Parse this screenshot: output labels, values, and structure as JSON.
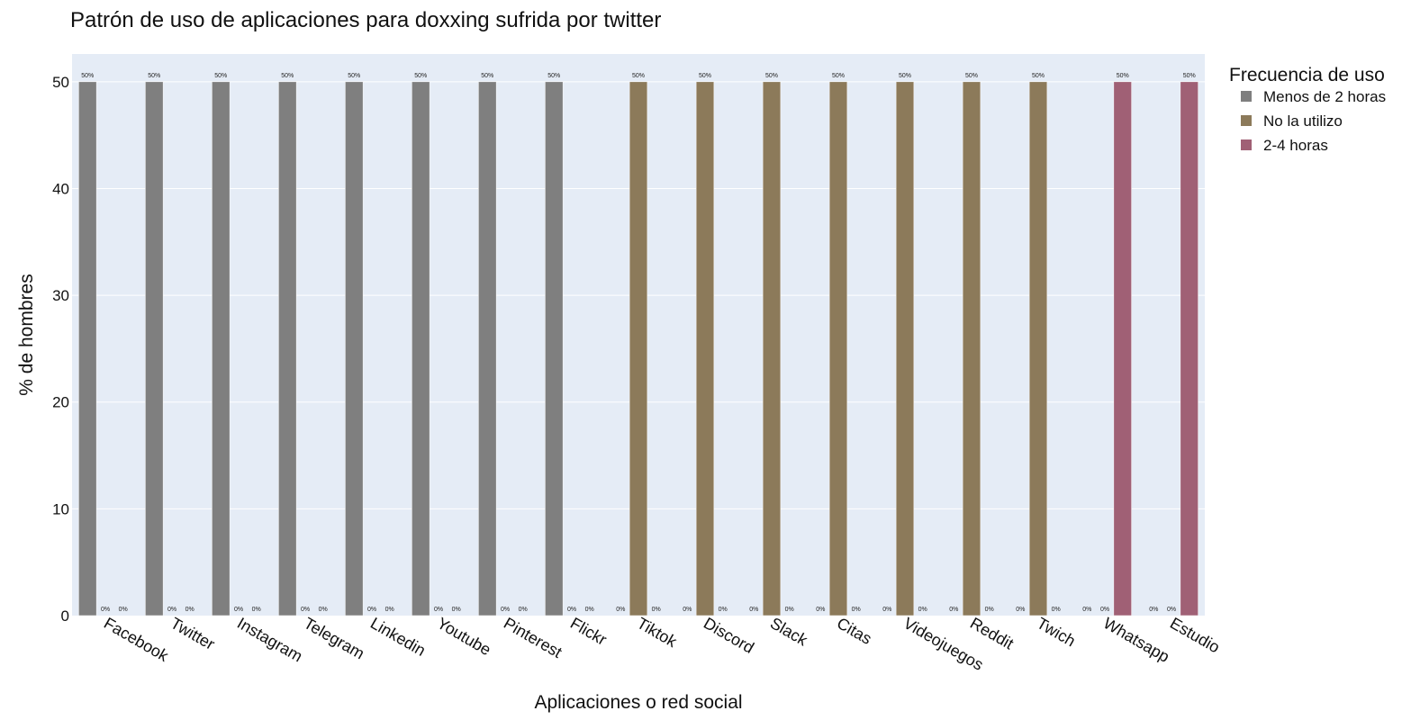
{
  "chart_data": {
    "type": "bar",
    "title": "Patrón de uso de aplicaciones para doxxing sufrida por twitter",
    "xlabel": "Aplicaciones o red social",
    "ylabel": "% de hombres",
    "ylim": [
      0,
      52.6
    ],
    "yticks": [
      0,
      10,
      20,
      30,
      40,
      50
    ],
    "grid": true,
    "legend": {
      "title": "Frecuencia de uso",
      "placement": "top-right"
    },
    "categories": [
      "Facebook",
      "Twitter",
      "Instagram",
      "Telegram",
      "Linkedin",
      "Youtube",
      "Pinterest",
      "Flickr",
      "Tiktok",
      "Discord",
      "Slack",
      "Citas",
      "Videojuegos",
      "Reddit",
      "Twich",
      "Whatsapp",
      "Estudio"
    ],
    "series": [
      {
        "name": "Menos de 2 horas",
        "color": "#7f7f7f",
        "values": [
          50,
          50,
          50,
          50,
          50,
          50,
          50,
          50,
          0,
          0,
          0,
          0,
          0,
          0,
          0,
          0,
          0
        ],
        "labels": [
          "50%",
          "50%",
          "50%",
          "50%",
          "50%",
          "50%",
          "50%",
          "50%",
          "0%",
          "0%",
          "0%",
          "0%",
          "0%",
          "0%",
          "0%",
          "0%",
          "0%"
        ]
      },
      {
        "name": "No la utilizo",
        "color": "#8c7a5a",
        "values": [
          0,
          0,
          0,
          0,
          0,
          0,
          0,
          0,
          50,
          50,
          50,
          50,
          50,
          50,
          50,
          0,
          0
        ],
        "labels": [
          "0%",
          "0%",
          "0%",
          "0%",
          "0%",
          "0%",
          "0%",
          "0%",
          "50%",
          "50%",
          "50%",
          "50%",
          "50%",
          "50%",
          "50%",
          "0%",
          "0%"
        ]
      },
      {
        "name": "2-4 horas",
        "color": "#a06075",
        "values": [
          0,
          0,
          0,
          0,
          0,
          0,
          0,
          0,
          0,
          0,
          0,
          0,
          0,
          0,
          0,
          50,
          50
        ],
        "labels": [
          "0%",
          "0%",
          "0%",
          "0%",
          "0%",
          "0%",
          "0%",
          "0%",
          "0%",
          "0%",
          "0%",
          "0%",
          "0%",
          "0%",
          "0%",
          "50%",
          "50%"
        ]
      }
    ]
  }
}
